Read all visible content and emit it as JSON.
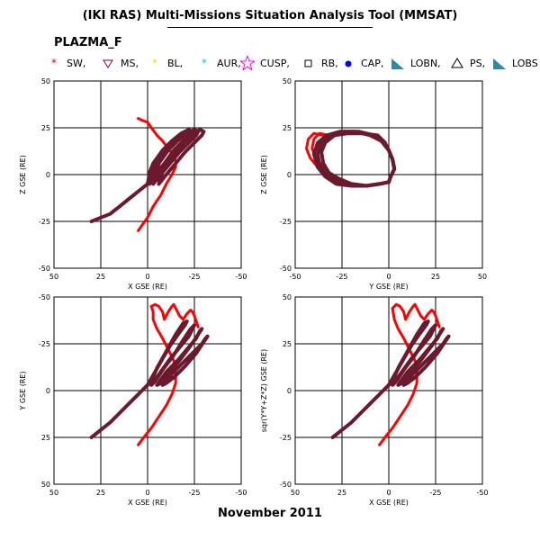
{
  "header": {
    "title": "(IKI RAS) Multi-Missions Situation Analysis Tool (MMSAT)",
    "mission": "PLAZMA_F",
    "footer": "November 2011"
  },
  "legend": [
    {
      "label": "SW,",
      "symbol": "star",
      "color": "#e00000"
    },
    {
      "label": "MS,",
      "symbol": "triangle-down",
      "color": "#800040"
    },
    {
      "label": "BL,",
      "symbol": "star",
      "color": "#ffd000"
    },
    {
      "label": "AUR,",
      "symbol": "star",
      "color": "#00c8d8"
    },
    {
      "label": "CUSP,",
      "symbol": "big-star",
      "color": "#ff00ff"
    },
    {
      "label": "RB,",
      "symbol": "square",
      "color": "#000000"
    },
    {
      "label": "CAP,",
      "symbol": "dot",
      "color": "#0000ff"
    },
    {
      "label": "LOBN,",
      "symbol": "wedge",
      "color": "#2e8aa0"
    },
    {
      "label": "PS,",
      "symbol": "triangle",
      "color": "#000000"
    },
    {
      "label": "LOBS",
      "symbol": "wedge",
      "color": "#2e8aa0"
    }
  ],
  "colors": {
    "magnetopause": "#ff0000",
    "orbit": "#6b1a2e",
    "grid": "#000000"
  },
  "chart_data": [
    {
      "type": "line",
      "panel": "top-left",
      "xlabel": "X GSE (RE)",
      "ylabel": "Z GSE (RE)",
      "xlim": [
        50,
        -50
      ],
      "ylim": [
        -50,
        50
      ],
      "xticks": [
        "50",
        "25",
        "0",
        "-25",
        "-50"
      ],
      "yticks": [
        "50",
        "25",
        "0",
        "-25",
        "-50"
      ],
      "grid": true,
      "series": [
        {
          "role": "boundary",
          "x": [
            5,
            3,
            0,
            -3,
            -7,
            -10,
            -13,
            -15,
            -15,
            -14,
            -11,
            -8,
            -5,
            -2,
            0,
            3,
            5
          ],
          "y": [
            -30,
            -27,
            -23,
            -17,
            -11,
            -5,
            0,
            4,
            7,
            10,
            14,
            18,
            21,
            25,
            28,
            29,
            30
          ]
        },
        {
          "role": "orbit",
          "x": [
            0,
            -4,
            -9,
            -14,
            -19,
            -23,
            -24,
            -22,
            -18,
            -13,
            -8,
            -3,
            -1,
            0,
            5,
            10,
            15,
            20,
            25,
            30
          ],
          "y": [
            -5,
            0,
            6,
            12,
            17,
            21,
            23,
            24,
            22,
            18,
            13,
            6,
            1,
            -5,
            -9,
            -13,
            -17,
            -21,
            -23,
            -25
          ]
        },
        {
          "role": "orbit",
          "x": [
            -3,
            -7,
            -12,
            -17,
            -22,
            -26,
            -27,
            -25,
            -21,
            -16,
            -11,
            -6,
            -3
          ],
          "y": [
            -5,
            0,
            6,
            12,
            17,
            21,
            23,
            24,
            22,
            18,
            13,
            6,
            -5
          ]
        },
        {
          "role": "orbit",
          "x": [
            -6,
            -10,
            -15,
            -20,
            -25,
            -29,
            -30,
            -28,
            -24,
            -19,
            -14,
            -9,
            -6
          ],
          "y": [
            -5,
            0,
            6,
            12,
            17,
            21,
            23,
            24,
            22,
            18,
            13,
            6,
            -5
          ]
        },
        {
          "role": "orbit",
          "x": [
            -1,
            -5,
            -10,
            -15,
            -20,
            -24,
            -25,
            -23,
            -19,
            -14,
            -9,
            -4,
            -1
          ],
          "y": [
            -5,
            0,
            6,
            12,
            17,
            21,
            23,
            23,
            21,
            17,
            12,
            5,
            -5
          ]
        }
      ]
    },
    {
      "type": "line",
      "panel": "top-right",
      "xlabel": "Y GSE (RE)",
      "ylabel": "Z GSE (RE)",
      "xlim": [
        -50,
        50
      ],
      "ylim": [
        -50,
        50
      ],
      "xticks": [
        "-50",
        "-25",
        "0",
        "25",
        "50"
      ],
      "yticks": [
        "50",
        "25",
        "0",
        "-25",
        "-50"
      ],
      "grid": true,
      "series": [
        {
          "role": "boundary",
          "x": [
            -38,
            -42,
            -44,
            -43,
            -40,
            -35
          ],
          "y": [
            4,
            9,
            14,
            19,
            22,
            21
          ]
        },
        {
          "role": "boundary",
          "x": [
            -35,
            -39,
            -41,
            -40,
            -37,
            -32
          ],
          "y": [
            4,
            9,
            14,
            19,
            22,
            21
          ]
        },
        {
          "role": "orbit",
          "x": [
            0,
            -5,
            -12,
            -20,
            -28,
            -34,
            -38,
            -40,
            -38,
            -33,
            -26,
            -18,
            -10,
            -4,
            0,
            2,
            3,
            1,
            0
          ],
          "y": [
            -4,
            -5,
            -6,
            -6,
            -5,
            -1,
            4,
            11,
            17,
            21,
            23,
            23,
            21,
            18,
            13,
            8,
            3,
            -1,
            -4
          ]
        },
        {
          "role": "orbit",
          "x": [
            0,
            -5,
            -12,
            -20,
            -28,
            -33,
            -37,
            -38,
            -36,
            -31,
            -24,
            -16,
            -8,
            -3,
            0,
            2,
            3,
            1,
            0
          ],
          "y": [
            -4,
            -5,
            -6,
            -5,
            -3,
            0,
            5,
            11,
            17,
            21,
            23,
            23,
            21,
            18,
            13,
            8,
            3,
            -1,
            -4
          ]
        },
        {
          "role": "orbit",
          "x": [
            0,
            -5,
            -12,
            -20,
            -27,
            -32,
            -35,
            -36,
            -34,
            -29,
            -22,
            -14,
            -6,
            -2,
            0,
            2,
            3,
            1,
            0
          ],
          "y": [
            -4,
            -5,
            -6,
            -5,
            -2,
            1,
            6,
            12,
            17,
            21,
            22,
            22,
            21,
            17,
            13,
            8,
            3,
            -1,
            -4
          ]
        }
      ]
    },
    {
      "type": "line",
      "panel": "bottom-left",
      "xlabel": "X GSE (RE)",
      "ylabel": "Y GSE (RE)",
      "xlim": [
        50,
        -50
      ],
      "ylim": [
        50,
        -50
      ],
      "xticks": [
        "50",
        "25",
        "0",
        "-25",
        "-50"
      ],
      "yticks": [
        "-50",
        "-25",
        "0",
        "25",
        "50"
      ],
      "grid": true,
      "series": [
        {
          "role": "boundary",
          "x": [
            5,
            2,
            -2,
            -6,
            -10,
            -13,
            -15,
            -15,
            -14,
            -11,
            -8,
            -5,
            -3,
            -3,
            -2
          ],
          "y": [
            29,
            25,
            20,
            14,
            8,
            2,
            -4,
            -10,
            -16,
            -22,
            -28,
            -33,
            -38,
            -42,
            -45
          ]
        },
        {
          "role": "boundary",
          "x": [
            -2,
            -4,
            -6,
            -8,
            -9,
            -11,
            -13,
            -14,
            -15,
            -17,
            -19,
            -21,
            -23,
            -24,
            -25,
            -26,
            -27
          ],
          "y": [
            -45,
            -46,
            -45,
            -42,
            -38,
            -42,
            -45,
            -46,
            -44,
            -40,
            -38,
            -41,
            -43,
            -42,
            -40,
            -37,
            -34
          ]
        },
        {
          "role": "orbit",
          "x": [
            0,
            5,
            10,
            15,
            20,
            25,
            30
          ],
          "y": [
            -3,
            2,
            7,
            12,
            17,
            21,
            25
          ]
        },
        {
          "role": "orbit",
          "x": [
            0,
            -4,
            -8,
            -12,
            -17,
            -20,
            -21,
            -19,
            -15,
            -10,
            -5,
            -2,
            0
          ],
          "y": [
            -3,
            -10,
            -17,
            -24,
            -31,
            -35,
            -37,
            -36,
            -30,
            -21,
            -12,
            -5,
            -3
          ]
        },
        {
          "role": "orbit",
          "x": [
            -2,
            -7,
            -12,
            -17,
            -22,
            -24,
            -25,
            -23,
            -19,
            -14,
            -8,
            -4,
            -2
          ],
          "y": [
            -3,
            -10,
            -17,
            -23,
            -29,
            -33,
            -35,
            -33,
            -27,
            -19,
            -11,
            -5,
            -3
          ]
        },
        {
          "role": "orbit",
          "x": [
            -5,
            -10,
            -16,
            -21,
            -26,
            -28,
            -29,
            -27,
            -23,
            -17,
            -11,
            -7,
            -5
          ],
          "y": [
            -3,
            -10,
            -16,
            -22,
            -28,
            -32,
            -33,
            -30,
            -24,
            -16,
            -9,
            -4,
            -3
          ]
        },
        {
          "role": "orbit",
          "x": [
            -8,
            -13,
            -19,
            -24,
            -29,
            -31,
            -32,
            -30,
            -26,
            -20,
            -14,
            -10,
            -8
          ],
          "y": [
            -3,
            -9,
            -15,
            -20,
            -25,
            -28,
            -29,
            -26,
            -20,
            -13,
            -7,
            -4,
            -3
          ]
        }
      ]
    },
    {
      "type": "line",
      "panel": "bottom-right",
      "xlabel": "X GSE (RE)",
      "ylabel": "sqr(Y*Y+Z*Z) GSE (RE)",
      "xlim": [
        50,
        -50
      ],
      "ylim": [
        -50,
        50
      ],
      "xticks": [
        "50",
        "25",
        "0",
        "-25",
        "-50"
      ],
      "yticks": [
        "50",
        "25",
        "0",
        "-25",
        "-50"
      ],
      "grid": true,
      "series": [
        {
          "role": "boundary",
          "x": [
            5,
            2,
            -2,
            -6,
            -10,
            -13,
            -15,
            -15,
            -14,
            -11,
            -8,
            -5,
            -3,
            -2
          ],
          "y": [
            -29,
            -25,
            -20,
            -14,
            -8,
            -2,
            4,
            10,
            16,
            22,
            28,
            33,
            38,
            44
          ]
        },
        {
          "role": "boundary",
          "x": [
            -2,
            -4,
            -6,
            -8,
            -9,
            -11,
            -13,
            -14,
            -15,
            -17,
            -19,
            -21,
            -23,
            -24,
            -25,
            -26,
            -27
          ],
          "y": [
            44,
            46,
            45,
            42,
            38,
            42,
            45,
            46,
            44,
            40,
            38,
            41,
            43,
            42,
            40,
            37,
            34
          ]
        },
        {
          "role": "orbit",
          "x": [
            0,
            5,
            10,
            15,
            20,
            25,
            30
          ],
          "y": [
            3,
            -2,
            -7,
            -12,
            -17,
            -21,
            -25
          ]
        },
        {
          "role": "orbit",
          "x": [
            0,
            -4,
            -8,
            -12,
            -17,
            -20,
            -21,
            -19,
            -15,
            -10,
            -5,
            -2,
            0
          ],
          "y": [
            3,
            10,
            17,
            24,
            31,
            35,
            37,
            36,
            30,
            21,
            12,
            5,
            3
          ]
        },
        {
          "role": "orbit",
          "x": [
            -2,
            -7,
            -12,
            -17,
            -22,
            -24,
            -25,
            -23,
            -19,
            -14,
            -8,
            -4,
            -2
          ],
          "y": [
            3,
            10,
            17,
            23,
            29,
            33,
            35,
            33,
            27,
            19,
            11,
            5,
            3
          ]
        },
        {
          "role": "orbit",
          "x": [
            -5,
            -10,
            -16,
            -21,
            -26,
            -28,
            -29,
            -27,
            -23,
            -17,
            -11,
            -7,
            -5
          ],
          "y": [
            3,
            10,
            16,
            22,
            28,
            32,
            33,
            30,
            24,
            16,
            9,
            4,
            3
          ]
        },
        {
          "role": "orbit",
          "x": [
            -8,
            -13,
            -19,
            -24,
            -29,
            -31,
            -32,
            -30,
            -26,
            -20,
            -14,
            -10,
            -8
          ],
          "y": [
            3,
            9,
            15,
            20,
            25,
            28,
            29,
            26,
            20,
            13,
            7,
            4,
            3
          ]
        }
      ]
    }
  ]
}
